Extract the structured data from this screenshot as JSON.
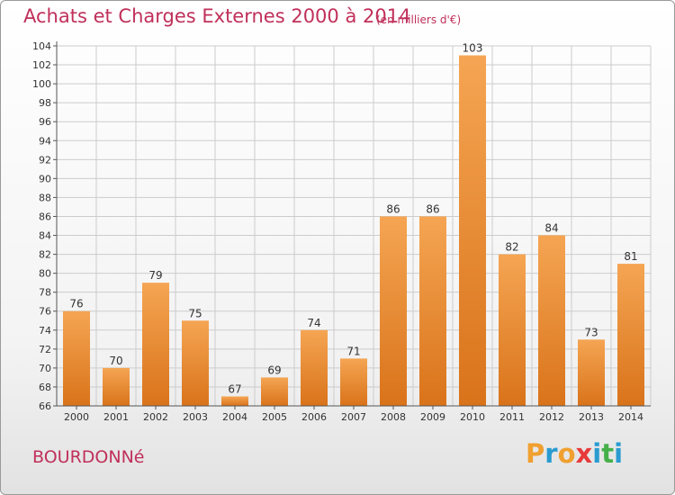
{
  "title": "Achats et Charges Externes 2000 à 2014",
  "subtitle": "(en milliers d'€)",
  "location": "BOURDONNé",
  "brand": {
    "letters": [
      "P",
      "r",
      "o",
      "x",
      "i",
      "t",
      "i"
    ],
    "colors": [
      "#f0a030",
      "#2a9bd0",
      "#f0a030",
      "#e83a3a",
      "#2a9bd0",
      "#46b048",
      "#2a9bd0"
    ]
  },
  "colors": {
    "bar_top": "#f5a553",
    "bar_bottom": "#d9731a",
    "grid": "#cccccc",
    "axis": "#555555",
    "text": "#333333",
    "accent": "#c0305a"
  },
  "chart_data": {
    "type": "bar",
    "title": "Achats et Charges Externes 2000 à 2014",
    "subtitle": "(en milliers d'€)",
    "categories": [
      "2000",
      "2001",
      "2002",
      "2003",
      "2004",
      "2005",
      "2006",
      "2007",
      "2008",
      "2009",
      "2010",
      "2011",
      "2012",
      "2013",
      "2014"
    ],
    "values": [
      76,
      70,
      79,
      75,
      67,
      69,
      74,
      71,
      86,
      86,
      103,
      82,
      84,
      73,
      81
    ],
    "xlabel": "",
    "ylabel": "",
    "ylim": [
      66,
      104
    ],
    "ytick_step": 2,
    "grid": true,
    "data_labels": true
  }
}
